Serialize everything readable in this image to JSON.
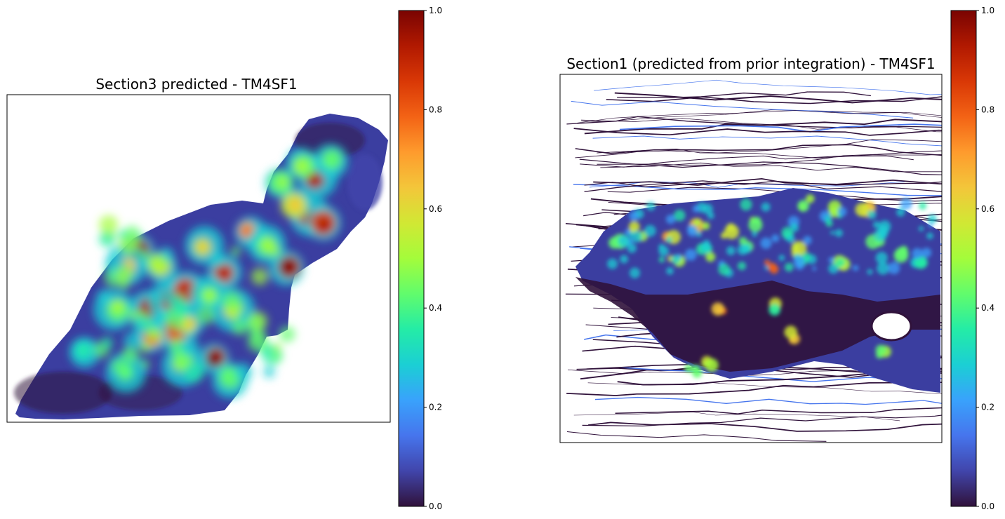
{
  "chart_data": [
    {
      "type": "heatmap",
      "title": "Section3 predicted - TM4SF1",
      "colormap": "turbo",
      "colorbar": {
        "range": [
          0,
          1
        ],
        "ticks": [
          "0.0",
          "0.2",
          "0.4",
          "0.6",
          "0.8",
          "1.0"
        ]
      },
      "axes_visible": false
    },
    {
      "type": "heatmap",
      "title": "Section1 (predicted from prior integration) - TM4SF1",
      "colormap": "turbo",
      "colorbar": {
        "range": [
          0,
          1
        ],
        "ticks": [
          "0.0",
          "0.2",
          "0.4",
          "0.6",
          "0.8",
          "1.0"
        ]
      },
      "axes_visible": false
    }
  ],
  "colors": {
    "turbo_stops": [
      "#30123b",
      "#4145ab",
      "#4675ed",
      "#39a2fc",
      "#1bcfd4",
      "#24eca6",
      "#61fc6c",
      "#a4fc3b",
      "#d1e834",
      "#f3c63a",
      "#fe9b2d",
      "#f36315",
      "#d93806",
      "#b11901",
      "#7a0402"
    ]
  }
}
